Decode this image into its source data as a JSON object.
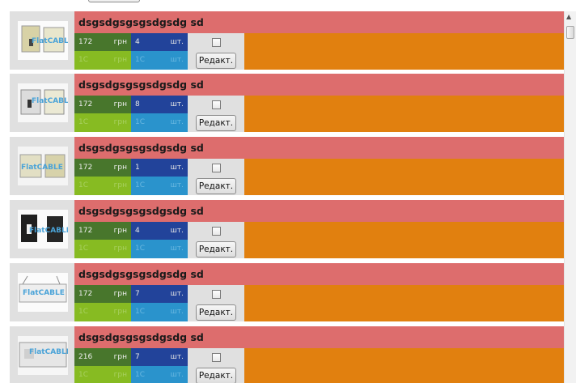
{
  "edit_label": "Редакт.",
  "currency_label": "грн",
  "unit_label": "шт.",
  "source_label": "1С",
  "products": [
    {
      "title": "dsgsdgsgsgsdgsdg sd",
      "price": "172",
      "quantity": "4",
      "image": "flat-cable-battery-image"
    },
    {
      "title": "dsgsdgsgsgsdgsdg sd",
      "price": "172",
      "quantity": "8",
      "image": "flat-cable-battery-image"
    },
    {
      "title": "dsgsdgsgsgsdgsdg sd",
      "price": "172",
      "quantity": "1",
      "image": "flat-cable-battery-image"
    },
    {
      "title": "dsgsdgsgsgsdgsdg sd",
      "price": "172",
      "quantity": "4",
      "image": "flat-cable-battery-image"
    },
    {
      "title": "dsgsdgsgsgsdgsdg sd",
      "price": "172",
      "quantity": "7",
      "image": "flat-cable-battery-image"
    },
    {
      "title": "dsgsdgsgsgsdgsdg sd",
      "price": "216",
      "quantity": "7",
      "image": "flat-cable-battery-image"
    }
  ],
  "colors": {
    "title_bar": "#dd6d6d",
    "price": "#48762c",
    "quantity": "#22439a",
    "source_price": "#87bb22",
    "source_quantity": "#2a93cc",
    "filler": "#e1800f"
  }
}
